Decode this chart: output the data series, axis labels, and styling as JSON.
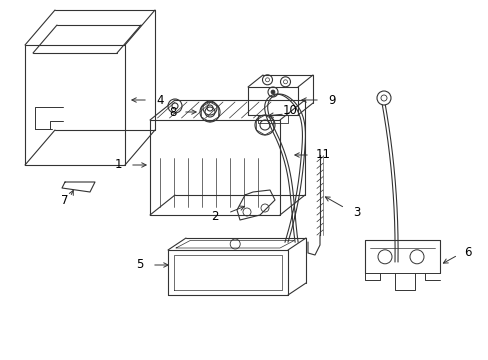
{
  "background_color": "#ffffff",
  "line_color": "#333333",
  "lw": 0.8,
  "figsize": [
    4.89,
    3.6
  ],
  "dpi": 100,
  "xlim": [
    0,
    489
  ],
  "ylim": [
    0,
    360
  ]
}
